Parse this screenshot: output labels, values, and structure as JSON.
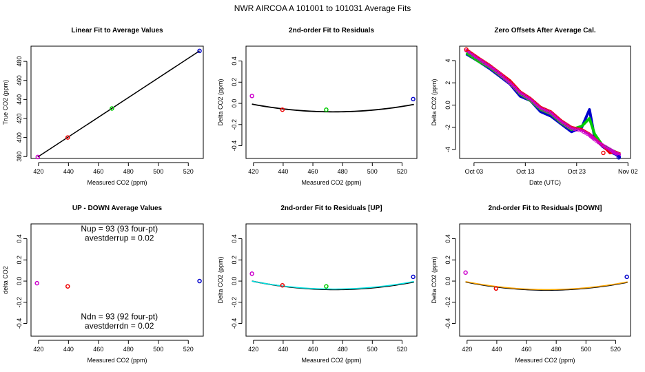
{
  "figure": {
    "title": "NWR   AIRCOA A   101001 to 101031   Average Fits"
  },
  "colors": {
    "red": "#ee0000",
    "green": "#00cc00",
    "blue": "#0000cc",
    "purple": "#cc00cc",
    "black": "#000000",
    "cyan": "#00e5e5",
    "orange": "#ffa500"
  },
  "chart_data": [
    {
      "id": "p1",
      "type": "scatter",
      "title": "Linear Fit to Average Values",
      "xlabel": "Measured CO2 (ppm)",
      "ylabel": "True CO2 (ppm)",
      "xlim": [
        415,
        530
      ],
      "ylim": [
        378,
        496
      ],
      "xticks": [
        420,
        440,
        460,
        480,
        500,
        520
      ],
      "yticks": [
        380,
        400,
        420,
        440,
        460,
        480
      ],
      "points": [
        {
          "x": 419.5,
          "y": 379.5,
          "color": "purple"
        },
        {
          "x": 439.5,
          "y": 400.0,
          "color": "red"
        },
        {
          "x": 469.0,
          "y": 430.5,
          "color": "green"
        },
        {
          "x": 527.5,
          "y": 491.0,
          "color": "blue"
        }
      ],
      "lines": [
        {
          "x": [
            419.5,
            527.5
          ],
          "y": [
            379.5,
            491.0
          ],
          "color": "black"
        }
      ]
    },
    {
      "id": "p2",
      "type": "scatter",
      "title": "2nd-order Fit to Residuals",
      "xlabel": "Measured CO2 (ppm)",
      "ylabel": "Delta CO2 (ppm)",
      "xlim": [
        415,
        530
      ],
      "ylim": [
        -0.52,
        0.54
      ],
      "xticks": [
        420,
        440,
        460,
        480,
        500,
        520
      ],
      "yticks": [
        -0.4,
        -0.2,
        0.0,
        0.2,
        0.4
      ],
      "points": [
        {
          "x": 419.0,
          "y": 0.07,
          "color": "purple"
        },
        {
          "x": 439.5,
          "y": -0.06,
          "color": "red"
        },
        {
          "x": 469.0,
          "y": -0.06,
          "color": "green"
        },
        {
          "x": 527.5,
          "y": 0.04,
          "color": "blue"
        }
      ],
      "curves": [
        {
          "a": 2.4e-05,
          "xc": 474.0,
          "c": -0.08,
          "from": 419,
          "to": 528,
          "color": "black"
        }
      ]
    },
    {
      "id": "p3",
      "type": "line",
      "title": "Zero Offsets After Average Cal.",
      "xlabel": "Date (UTC)",
      "ylabel": "Delta CO2 (ppm)",
      "xlim": [
        -0.8,
        32.5
      ],
      "ylim": [
        -4.8,
        5.3
      ],
      "xticks": [
        2,
        12,
        22,
        32
      ],
      "xticklabels": [
        "Oct 03",
        "Oct 13",
        "Oct 23",
        "Nov 02"
      ],
      "yticks": [
        -4,
        -2,
        0,
        2,
        4
      ],
      "series": [
        {
          "name": "blue",
          "color": "blue",
          "x": [
            0.5,
            3,
            5,
            7,
            9,
            11,
            13,
            15,
            17,
            19,
            21,
            23,
            24.5,
            25.5,
            27,
            28.5,
            29.5,
            30.5
          ],
          "y": [
            4.6,
            3.9,
            3.3,
            2.6,
            1.9,
            0.8,
            0.4,
            -0.6,
            -1.0,
            -1.7,
            -2.4,
            -2.0,
            -0.4,
            -2.9,
            -3.7,
            -4.2,
            -4.4,
            -4.7
          ]
        },
        {
          "name": "green",
          "color": "green",
          "x": [
            0.5,
            3,
            5,
            7,
            9,
            11,
            13,
            15,
            17,
            19,
            21,
            23,
            24.5,
            25.5,
            27,
            28.5,
            29.5,
            30.5
          ],
          "y": [
            4.7,
            3.9,
            3.4,
            2.7,
            2.0,
            1.0,
            0.4,
            -0.4,
            -0.8,
            -1.6,
            -2.2,
            -1.9,
            -1.2,
            -2.6,
            -3.6,
            -4.0,
            -4.2,
            -4.4
          ]
        },
        {
          "name": "red",
          "color": "red",
          "x": [
            0.5,
            3,
            5,
            7,
            9,
            11,
            13,
            15,
            17,
            19,
            21,
            23,
            24.5,
            25.5,
            27,
            28.5,
            29.5,
            30.5
          ],
          "y": [
            5.0,
            4.2,
            3.6,
            2.9,
            2.2,
            1.2,
            0.6,
            -0.2,
            -0.6,
            -1.4,
            -2.0,
            -2.2,
            -2.6,
            -3.0,
            -3.6,
            -4.3,
            -4.2,
            -4.4
          ]
        },
        {
          "name": "purple",
          "color": "purple",
          "x": [
            0.5,
            3,
            5,
            7,
            9,
            11,
            13,
            15,
            17,
            19,
            21,
            23,
            24.5,
            25.5,
            27,
            28.5,
            29.5,
            30.5
          ],
          "y": [
            4.9,
            4.1,
            3.5,
            2.8,
            2.0,
            1.1,
            0.5,
            -0.3,
            -0.7,
            -1.5,
            -2.1,
            -2.3,
            -2.7,
            -3.1,
            -3.6,
            -4.0,
            -4.3,
            -4.5
          ]
        }
      ],
      "markers": [
        {
          "x": 0.5,
          "y": 5.0,
          "color": "red"
        },
        {
          "x": 27.2,
          "y": -4.3,
          "color": "red"
        },
        {
          "x": 30.2,
          "y": -4.7,
          "color": "blue"
        }
      ]
    },
    {
      "id": "p4",
      "type": "scatter",
      "title": "UP - DOWN Average Values",
      "xlabel": "Measured CO2 (ppm)",
      "ylabel": "delta CO2",
      "xlim": [
        415,
        530
      ],
      "ylim": [
        -0.52,
        0.54
      ],
      "xticks": [
        420,
        440,
        460,
        480,
        500,
        520
      ],
      "yticks": [
        -0.4,
        -0.2,
        0.0,
        0.2,
        0.4
      ],
      "points": [
        {
          "x": 419.0,
          "y": -0.02,
          "color": "purple"
        },
        {
          "x": 439.5,
          "y": -0.05,
          "color": "red"
        },
        {
          "x": 527.5,
          "y": 0.0,
          "color": "blue"
        }
      ],
      "annotations": [
        {
          "text": "Nup = 93 (93 four-pt)",
          "x": 474,
          "y": 0.47
        },
        {
          "text": "avestderrup =  0.02",
          "x": 474,
          "y": 0.38
        },
        {
          "text": "Ndn = 93 (92 four-pt)",
          "x": 474,
          "y": -0.36
        },
        {
          "text": "avestderrdn =  0.02",
          "x": 474,
          "y": -0.45
        }
      ]
    },
    {
      "id": "p5",
      "type": "scatter",
      "title": "2nd-order Fit to Residuals [UP]",
      "xlabel": "Measured CO2 (ppm)",
      "ylabel": "Delta CO2 (ppm)",
      "xlim": [
        415,
        530
      ],
      "ylim": [
        -0.52,
        0.54
      ],
      "xticks": [
        420,
        440,
        460,
        480,
        500,
        520
      ],
      "yticks": [
        -0.4,
        -0.2,
        0.0,
        0.2,
        0.4
      ],
      "points": [
        {
          "x": 419.0,
          "y": 0.07,
          "color": "purple"
        },
        {
          "x": 439.5,
          "y": -0.04,
          "color": "red"
        },
        {
          "x": 469.0,
          "y": -0.05,
          "color": "green"
        },
        {
          "x": 527.5,
          "y": 0.04,
          "color": "blue"
        }
      ],
      "curves": [
        {
          "a": 2.55e-05,
          "xc": 475.0,
          "c": -0.08,
          "from": 419,
          "to": 528,
          "color": "black"
        },
        {
          "a": 2.45e-05,
          "xc": 474.0,
          "c": -0.075,
          "from": 419,
          "to": 528,
          "color": "cyan"
        }
      ]
    },
    {
      "id": "p6",
      "type": "scatter",
      "title": "2nd-order Fit to Residuals [DOWN]",
      "xlabel": "Measured CO2 (ppm)",
      "ylabel": "Delta CO2 (ppm)",
      "xlim": [
        415,
        530
      ],
      "ylim": [
        -0.52,
        0.54
      ],
      "xticks": [
        420,
        440,
        460,
        480,
        500,
        520
      ],
      "yticks": [
        -0.4,
        -0.2,
        0.0,
        0.2,
        0.4
      ],
      "points": [
        {
          "x": 419.0,
          "y": 0.08,
          "color": "purple"
        },
        {
          "x": 439.5,
          "y": -0.07,
          "color": "red"
        },
        {
          "x": 527.5,
          "y": 0.04,
          "color": "blue"
        }
      ],
      "curves": [
        {
          "a": 2.55e-05,
          "xc": 474.0,
          "c": -0.085,
          "from": 419,
          "to": 528,
          "color": "black"
        },
        {
          "a": 2.5e-05,
          "xc": 474.0,
          "c": -0.08,
          "from": 419,
          "to": 528,
          "color": "orange"
        }
      ]
    }
  ]
}
